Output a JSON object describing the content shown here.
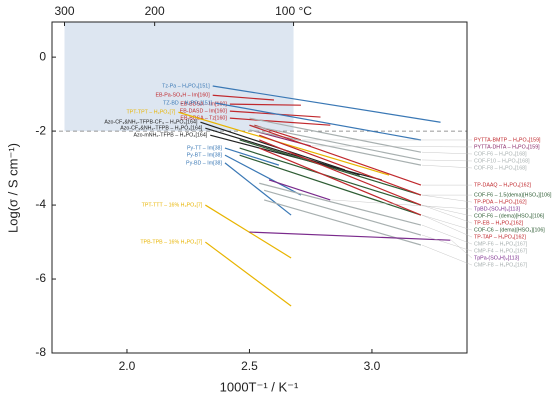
{
  "chart_data": {
    "type": "line",
    "xlabel": "1000T⁻¹ / K⁻¹",
    "ylabel": "Log(σ / S cm⁻¹)",
    "xlim": [
      1.694,
      3.388
    ],
    "ylim": [
      -8,
      0.95
    ],
    "xticks": [
      {
        "value": 2,
        "label": "2.0"
      },
      {
        "value": 2.5,
        "label": "2.5"
      },
      {
        "value": 3,
        "label": "3.0"
      }
    ],
    "yticks": [
      -8,
      -6,
      -4,
      -2,
      0
    ],
    "x2ticks": [
      {
        "value": 1.745,
        "label": "300"
      },
      {
        "value": 2.113,
        "label": "200"
      },
      {
        "value": 2.68,
        "label": "100 °C"
      }
    ],
    "highlight": {
      "x": [
        1.745,
        2.68
      ],
      "y": [
        -2,
        0.95
      ],
      "color": "#dde6f1"
    },
    "hline": -2,
    "series": [
      {
        "name": "Tz-Pa – H₃PO₄[151]",
        "color": "#3a78b5",
        "x": [
          2.35,
          3.28
        ],
        "values": [
          -0.78,
          -1.76
        ]
      },
      {
        "name": "EB-Pa-SO₃H – Im[160]",
        "color": "#c0282d",
        "x": [
          2.35,
          2.6
        ],
        "values": [
          -1.03,
          -1.16
        ]
      },
      {
        "name": "EB-BDSA – Im[160]",
        "color": "#c0282d",
        "x": [
          2.42,
          2.71
        ],
        "values": [
          -1.27,
          -1.3
        ]
      },
      {
        "name": "EB-DASD – Im[160]",
        "color": "#c0282d",
        "x": [
          2.42,
          2.79
        ],
        "values": [
          -1.46,
          -1.62
        ]
      },
      {
        "name": "EB-BDSA – Tz[160]",
        "color": "#c0282d",
        "x": [
          2.42,
          2.83
        ],
        "values": [
          -1.65,
          -1.84
        ]
      },
      {
        "name": "Azo-CF₃&NH₂-TFPB-CF₃ – H₃PO₄[164]",
        "color": "#222222",
        "x": [
          2.3,
          2.89
        ],
        "values": [
          -1.76,
          -3.05
        ]
      },
      {
        "name": "Azo-CF₃&NH₂-TFPB – H₃PO₄[164]",
        "color": "#222222",
        "x": [
          2.32,
          2.95
        ],
        "values": [
          -1.92,
          -3.19
        ]
      },
      {
        "name": "Azo-mNH₂-TFPB – H₃PO₄[164]",
        "color": "#222222",
        "x": [
          2.34,
          3.04
        ],
        "values": [
          -2.11,
          -3.32
        ]
      },
      {
        "name": "TPT-TPT – H₃PO₄[7]",
        "color": "#e8b400",
        "x": [
          2.21,
          3.07
        ],
        "values": [
          -1.49,
          -3.19
        ]
      },
      {
        "name": "Py-TT – Im[38]",
        "color": "#3a78b5",
        "x": [
          2.4,
          2.62
        ],
        "values": [
          -2.46,
          -2.92
        ]
      },
      {
        "name": "Py-BT – Im[38]",
        "color": "#3a78b5",
        "x": [
          2.4,
          2.71
        ],
        "values": [
          -2.65,
          -3.73
        ]
      },
      {
        "name": "Py-BD – Im[38]",
        "color": "#3a78b5",
        "x": [
          2.4,
          2.67
        ],
        "values": [
          -2.86,
          -4.27
        ]
      },
      {
        "name": "TPT-TTT – 16% H₃PO₄[7]",
        "color": "#e8b400",
        "x": [
          2.32,
          2.67
        ],
        "values": [
          -4.0,
          -5.43
        ]
      },
      {
        "name": "TPB-TPB – 16% H₃PO₄[7]",
        "color": "#e8b400",
        "x": [
          2.32,
          2.67
        ],
        "values": [
          -5.0,
          -6.73
        ]
      },
      {
        "name": "PYTTA-BMTP – H₃PO₄[159]",
        "color": "#c0282d",
        "x": [
          2.52,
          2.71
        ],
        "values": [
          -1.84,
          -2.24
        ]
      },
      {
        "name": "PYTTA-DHTA – H₃PO₄[159]",
        "color": "#8a2a6a",
        "x": [
          2.52,
          2.75
        ],
        "values": [
          -2.0,
          -2.4
        ]
      },
      {
        "name": "TZ-BD – H₃PO₄[151]",
        "color": "#3a78b5",
        "x": [
          2.36,
          3.2
        ],
        "values": [
          -1.24,
          -2.24
        ]
      },
      {
        "name": "COF-F6 – H₃PO₄[168]",
        "color": "#a8b0b0",
        "x": [
          2.5,
          3.2
        ],
        "values": [
          -1.65,
          -2.57
        ]
      },
      {
        "name": "COF-F10 – H₃PO₄[168]",
        "color": "#a8b0b0",
        "x": [
          2.5,
          3.2
        ],
        "values": [
          -1.84,
          -2.78
        ]
      },
      {
        "name": "COF-F8 – H₃PO₄[168]",
        "color": "#a8b0b0",
        "x": [
          2.5,
          3.2
        ],
        "values": [
          -1.97,
          -2.92
        ]
      },
      {
        "name": "COF-F6 – 1.5(dema)[HSO₄][106]",
        "color": "#2e5d34",
        "x": [
          2.46,
          3.2
        ],
        "values": [
          -2.24,
          -3.73
        ]
      },
      {
        "name": "COF-F6 – (dema)[HSO₄][106]",
        "color": "#2e5d34",
        "x": [
          2.46,
          3.2
        ],
        "values": [
          -2.46,
          -4.0
        ]
      },
      {
        "name": "COF-C6 – (dema)[HSO₄][106]",
        "color": "#2e5d34",
        "x": [
          2.46,
          3.2
        ],
        "values": [
          -2.65,
          -4.27
        ]
      },
      {
        "name": "TP-DAAQ – H₃PO₄[162]",
        "color": "#c0282d",
        "x": [
          2.5,
          3.2
        ],
        "values": [
          -1.84,
          -3.46
        ]
      },
      {
        "name": "TP-PDA – H₃PO₄[162]",
        "color": "#c0282d",
        "x": [
          2.54,
          3.2
        ],
        "values": [
          -2.11,
          -3.73
        ]
      },
      {
        "name": "TP-EB – H₃PO₄[162]",
        "color": "#c0282d",
        "x": [
          2.54,
          3.2
        ],
        "values": [
          -2.24,
          -4.0
        ]
      },
      {
        "name": "TP-TAP – H₃PO₄[162]",
        "color": "#c0282d",
        "x": [
          2.54,
          3.2
        ],
        "values": [
          -2.46,
          -4.27
        ]
      },
      {
        "name": "CMP-F6 – H₃PO₄[167]",
        "color": "#a8b0b0",
        "x": [
          2.54,
          3.2
        ],
        "values": [
          -3.41,
          -4.54
        ]
      },
      {
        "name": "CMP-F4 – H₃PO₄[167]",
        "color": "#a8b0b0",
        "x": [
          2.56,
          3.2
        ],
        "values": [
          -3.6,
          -4.81
        ]
      },
      {
        "name": "CMP-F8 – H₃PO₄[167]",
        "color": "#a8b0b0",
        "x": [
          2.56,
          3.2
        ],
        "values": [
          -3.86,
          -5.08
        ]
      },
      {
        "name": "TpPa-(SO₃H)₂[113]",
        "color": "#7a2a8c",
        "x": [
          2.5,
          3.32
        ],
        "values": [
          -4.73,
          -4.95
        ]
      },
      {
        "name": "TpBD-(SO₃H)₂[113]",
        "color": "#7a2a8c",
        "x": [
          2.58,
          2.83
        ],
        "values": [
          -3.32,
          -3.86
        ]
      }
    ]
  }
}
